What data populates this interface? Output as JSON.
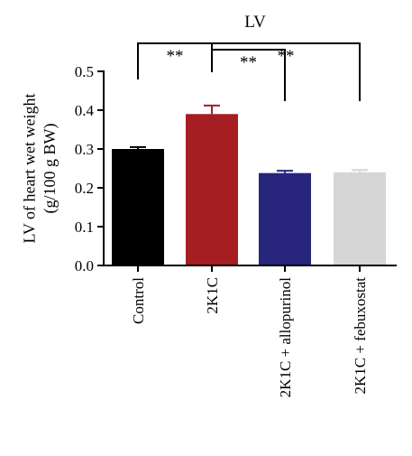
{
  "chart_data": {
    "type": "bar",
    "title": "LV",
    "xlabel": "",
    "ylabel": "LV of heart wet weight (g/100 g BW)",
    "ylabel_lines": [
      "LV of heart wet weight",
      "(g/100 g BW)"
    ],
    "ylim": [
      0,
      0.5
    ],
    "yticks": [
      "0.0",
      "0.1",
      "0.2",
      "0.3",
      "0.4",
      "0.5"
    ],
    "grid": false,
    "legend": "none",
    "categories": [
      "Control",
      "2K1C",
      "2K1C + allopurinol",
      "2K1C + febuxostat"
    ],
    "values": [
      0.3,
      0.39,
      0.238,
      0.24
    ],
    "errors": [
      0.005,
      0.022,
      0.006,
      0.006
    ],
    "colors": [
      "#000000",
      "#a41e22",
      "#27267c",
      "#d6d6d6"
    ],
    "significance": [
      {
        "from": 0,
        "to": 1,
        "label": "**"
      },
      {
        "from": 1,
        "to": 2,
        "label": "**"
      },
      {
        "from": 1,
        "to": 3,
        "label": "**"
      }
    ]
  }
}
